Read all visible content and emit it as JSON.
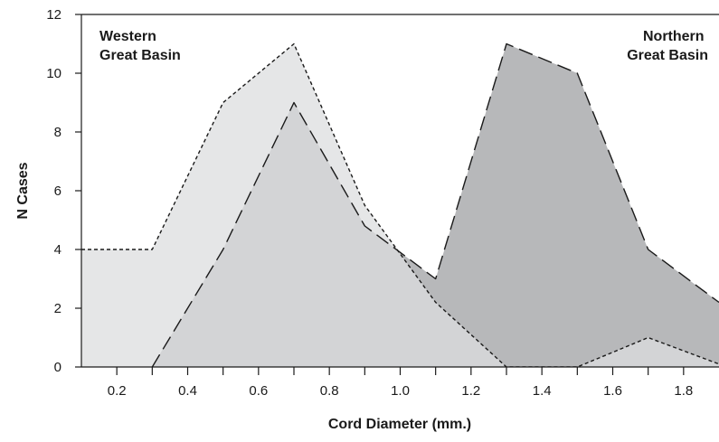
{
  "chart_data": {
    "type": "area",
    "xlabel": "Cord Diameter (mm.)",
    "ylabel": "N Cases",
    "xlim": [
      0.1,
      1.9
    ],
    "ylim": [
      0,
      12
    ],
    "x_ticks": [
      "0.2",
      "0.4",
      "0.6",
      "0.8",
      "1.0",
      "1.2",
      "1.4",
      "1.6",
      "1.8"
    ],
    "y_ticks": [
      "0",
      "2",
      "4",
      "6",
      "8",
      "10",
      "12"
    ],
    "grid": false,
    "series": [
      {
        "name": "Western Great Basin",
        "label_lines": [
          "Western",
          "Great Basin"
        ],
        "label_position": "top-left",
        "outline": "short-dash",
        "fill": "#e5e6e7",
        "x": [
          0.1,
          0.3,
          0.5,
          0.7,
          0.9,
          1.1,
          1.3,
          1.5,
          1.7,
          1.9
        ],
        "y": [
          4,
          4,
          9,
          11,
          5.5,
          2.2,
          0,
          0,
          1,
          0.1
        ]
      },
      {
        "name": "Northern Great Basin",
        "label_lines": [
          "Northern",
          "Great Basin"
        ],
        "label_position": "top-right",
        "outline": "long-dash",
        "fill": "#b7b8ba",
        "x": [
          0.3,
          0.5,
          0.7,
          0.9,
          1.1,
          1.3,
          1.5,
          1.7,
          1.9
        ],
        "y": [
          0,
          4,
          9,
          4.8,
          3,
          11,
          10,
          4,
          2.2
        ]
      }
    ],
    "overlap_fill": "#d3d4d6"
  }
}
